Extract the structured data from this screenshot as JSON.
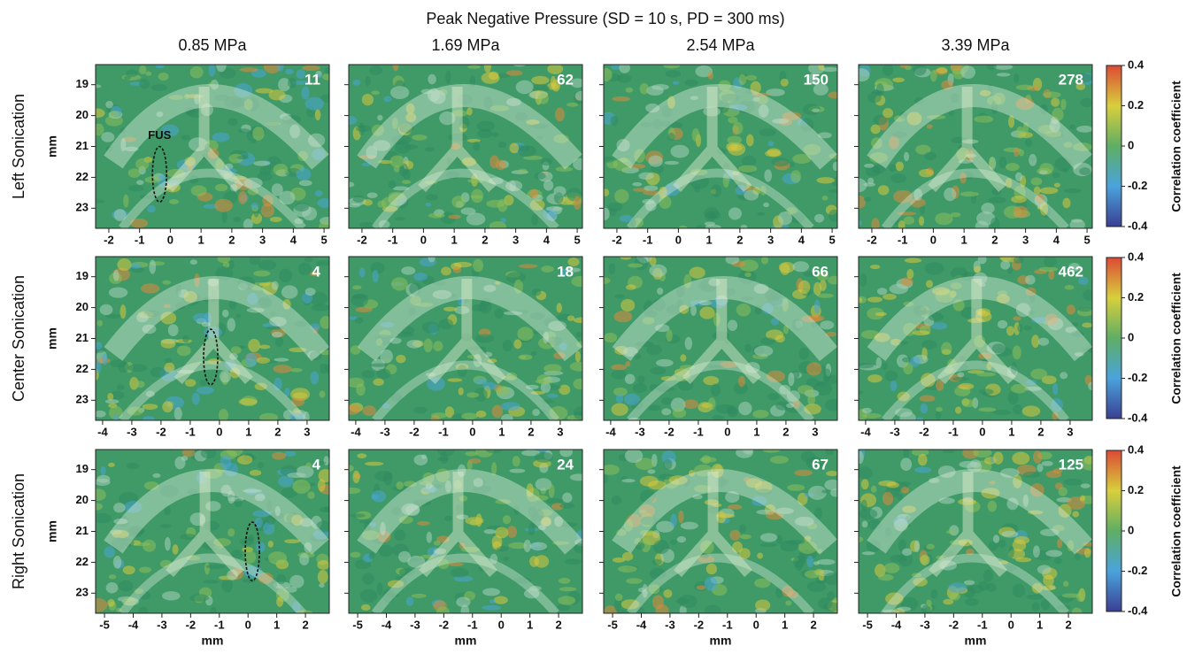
{
  "title": "Peak Negative Pressure (SD = 10 s, PD = 300 ms)",
  "column_titles": [
    "0.85 MPa",
    "1.69 MPa",
    "2.54 MPa",
    "3.39 MPa"
  ],
  "row_labels": [
    "Left Sonication",
    "Center Sonication",
    "Right Sonication"
  ],
  "x_axis_label": "mm",
  "y_axis_label": "mm",
  "fus_label": "FUS",
  "counts": [
    [
      11,
      62,
      150,
      278
    ],
    [
      4,
      18,
      66,
      462
    ],
    [
      4,
      24,
      67,
      125
    ]
  ],
  "ylim": [
    18.35,
    23.65
  ],
  "yticks": [
    19,
    20,
    21,
    22,
    23
  ],
  "rows": [
    {
      "xlim": [
        -2.43,
        5.17
      ],
      "xticks": [
        -2,
        -1,
        0,
        1,
        2,
        3,
        4,
        5
      ]
    },
    {
      "xlim": [
        -4.24,
        3.76
      ],
      "xticks": [
        -4,
        -3,
        -2,
        -1,
        0,
        1,
        2,
        3
      ]
    },
    {
      "xlim": [
        -5.31,
        2.83
      ],
      "xticks": [
        -5,
        -4,
        -3,
        -2,
        -1,
        0,
        1,
        2
      ]
    }
  ],
  "colorbar": {
    "label": "Correlation coefficient",
    "lim": [
      -0.4,
      0.4
    ],
    "ticks": [
      0.4,
      0.2,
      0,
      -0.2,
      -0.4
    ],
    "colors": [
      "#3a3f94",
      "#4aa3dc",
      "#5fae64",
      "#d8cf3c",
      "#dc4a35"
    ]
  }
}
